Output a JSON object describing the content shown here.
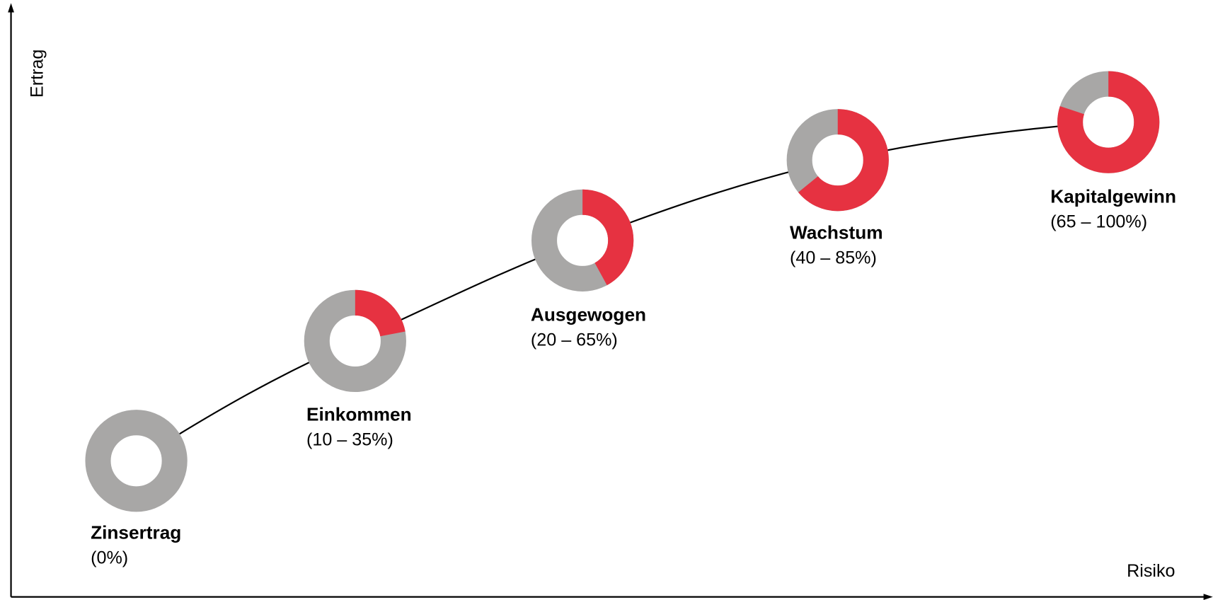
{
  "axes": {
    "y_label": "Ertrag",
    "x_label": "Risiko"
  },
  "nodes": [
    {
      "label": "Zinsertrag",
      "range": "(0%)",
      "share": 0
    },
    {
      "label": "Einkommen",
      "range": "(10 – 35%)",
      "share": 22
    },
    {
      "label": "Ausgewogen",
      "range": "(20 – 65%)",
      "share": 42
    },
    {
      "label": "Wachstum",
      "range": "(40 – 85%)",
      "share": 64
    },
    {
      "label": "Kapitalgewinn",
      "range": "(65 – 100%)",
      "share": 80
    }
  ]
}
